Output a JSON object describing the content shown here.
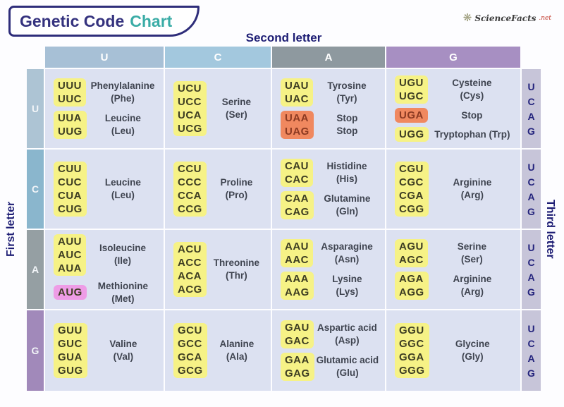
{
  "title": {
    "part1": "Genetic Code",
    "part2": "Chart"
  },
  "logo": {
    "icon_glyph": "❋",
    "text": "ScienceFacts",
    "suffix": ".net"
  },
  "axis": {
    "top": "Second letter",
    "left": "First letter",
    "right": "Third letter"
  },
  "second_letters": [
    "U",
    "C",
    "A",
    "G"
  ],
  "third_letters": [
    "U",
    "C",
    "A",
    "G"
  ],
  "colors": {
    "header_u": "#a7c0d6",
    "header_c": "#a3c8de",
    "header_a": "#8e999f",
    "header_g": "#a78fc2",
    "row_label_u": "#adc4d4",
    "row_label_c": "#8ab6cd",
    "row_label_a": "#959fa3",
    "row_label_g": "#a189ba",
    "cell_background": "#dce1f1",
    "third_letter_strip": "#c7c5d9",
    "codon_highlight_yellow": "#f6f286",
    "stop_codon_orange": "#f0885f",
    "start_codon_pink": "#ee9ce6",
    "navy_text": "#1d1d74",
    "teal_accent": "#3aaca6"
  },
  "rows": [
    {
      "first_letter": "U",
      "cells": [
        {
          "groups": [
            {
              "codons": [
                "UUU",
                "UUC"
              ],
              "highlight": "yellow",
              "label": "Phenylalanine\n(Phe)"
            },
            {
              "codons": [
                "UUA",
                "UUG"
              ],
              "highlight": "yellow",
              "label": "Leucine\n(Leu)"
            }
          ]
        },
        {
          "groups": [
            {
              "codons": [
                "UCU",
                "UCC",
                "UCA",
                "UCG"
              ],
              "highlight": "yellow",
              "label": "Serine\n(Ser)"
            }
          ]
        },
        {
          "groups": [
            {
              "codons": [
                "UAU",
                "UAC"
              ],
              "highlight": "yellow",
              "label": "Tyrosine\n(Tyr)"
            },
            {
              "codons": [
                "UAA",
                "UAG"
              ],
              "highlight": "orange",
              "label": "Stop\nStop"
            }
          ]
        },
        {
          "groups": [
            {
              "codons": [
                "UGU",
                "UGC"
              ],
              "highlight": "yellow",
              "label": "Cysteine\n(Cys)"
            },
            {
              "codons": [
                "UGA"
              ],
              "highlight": "orange",
              "label": "Stop"
            },
            {
              "codons": [
                "UGG"
              ],
              "highlight": "yellow",
              "label": "Tryptophan (Trp)"
            }
          ]
        }
      ]
    },
    {
      "first_letter": "C",
      "cells": [
        {
          "groups": [
            {
              "codons": [
                "CUU",
                "CUC",
                "CUA",
                "CUG"
              ],
              "highlight": "yellow",
              "label": "Leucine\n(Leu)"
            }
          ]
        },
        {
          "groups": [
            {
              "codons": [
                "CCU",
                "CCC",
                "CCA",
                "CCG"
              ],
              "highlight": "yellow",
              "label": "Proline\n(Pro)"
            }
          ]
        },
        {
          "groups": [
            {
              "codons": [
                "CAU",
                "CAC"
              ],
              "highlight": "yellow",
              "label": "Histidine\n(His)"
            },
            {
              "codons": [
                "CAA",
                "CAG"
              ],
              "highlight": "yellow",
              "label": "Glutamine\n(Gln)"
            }
          ]
        },
        {
          "groups": [
            {
              "codons": [
                "CGU",
                "CGC",
                "CGA",
                "CGG"
              ],
              "highlight": "yellow",
              "label": "Arginine\n(Arg)"
            }
          ]
        }
      ]
    },
    {
      "first_letter": "A",
      "cells": [
        {
          "groups": [
            {
              "codons": [
                "AUU",
                "AUC",
                "AUA"
              ],
              "highlight": "yellow",
              "label": "Isoleucine\n(Ile)"
            },
            {
              "codons": [
                "AUG"
              ],
              "highlight": "pink",
              "label": "Methionine\n(Met)"
            }
          ]
        },
        {
          "groups": [
            {
              "codons": [
                "ACU",
                "ACC",
                "ACA",
                "ACG"
              ],
              "highlight": "yellow",
              "label": "Threonine\n(Thr)"
            }
          ]
        },
        {
          "groups": [
            {
              "codons": [
                "AAU",
                "AAC"
              ],
              "highlight": "yellow",
              "label": "Asparagine\n(Asn)"
            },
            {
              "codons": [
                "AAA",
                "AAG"
              ],
              "highlight": "yellow",
              "label": "Lysine\n(Lys)"
            }
          ]
        },
        {
          "groups": [
            {
              "codons": [
                "AGU",
                "AGC"
              ],
              "highlight": "yellow",
              "label": "Serine\n(Ser)"
            },
            {
              "codons": [
                "AGA",
                "AGG"
              ],
              "highlight": "yellow",
              "label": "Arginine\n(Arg)"
            }
          ]
        }
      ]
    },
    {
      "first_letter": "G",
      "cells": [
        {
          "groups": [
            {
              "codons": [
                "GUU",
                "GUC",
                "GUA",
                "GUG"
              ],
              "highlight": "yellow",
              "label": "Valine\n(Val)"
            }
          ]
        },
        {
          "groups": [
            {
              "codons": [
                "GCU",
                "GCC",
                "GCA",
                "GCG"
              ],
              "highlight": "yellow",
              "label": "Alanine\n(Ala)"
            }
          ]
        },
        {
          "groups": [
            {
              "codons": [
                "GAU",
                "GAC"
              ],
              "highlight": "yellow",
              "label": "Aspartic acid\n(Asp)"
            },
            {
              "codons": [
                "GAA",
                "GAG"
              ],
              "highlight": "yellow",
              "label": "Glutamic acid\n(Glu)"
            }
          ]
        },
        {
          "groups": [
            {
              "codons": [
                "GGU",
                "GGC",
                "GGA",
                "GGG"
              ],
              "highlight": "yellow",
              "label": "Glycine\n(Gly)"
            }
          ]
        }
      ]
    }
  ]
}
